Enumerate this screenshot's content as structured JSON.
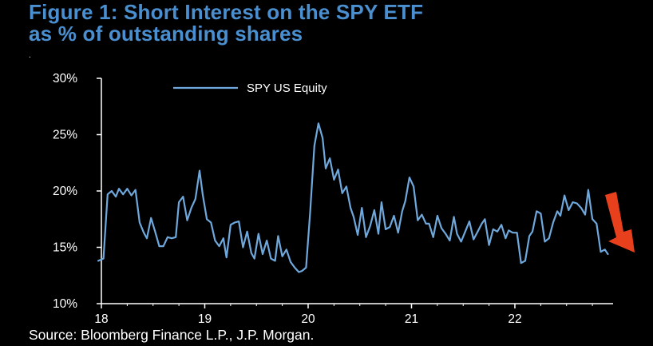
{
  "header": {
    "title_line1": "Figure 1: Short Interest on the SPY ETF",
    "title_line2": "as % of outstanding shares",
    "dot": "."
  },
  "footer": {
    "source": "Source: Bloomberg Finance L.P., J.P. Morgan."
  },
  "colors": {
    "title": "#4a8fd0",
    "series": "#6fa8dc",
    "arrow": "#e8401c",
    "axis": "#ffffff"
  },
  "chart_data": {
    "type": "line",
    "title": "Figure 1: Short Interest on the SPY ETF as % of outstanding shares",
    "xlabel": "",
    "ylabel": "",
    "xlim": [
      2018.0,
      2022.95
    ],
    "ylim": [
      10,
      30
    ],
    "y_ticks": [
      "10%",
      "15%",
      "20%",
      "25%",
      "30%"
    ],
    "y_tick_values": [
      10,
      15,
      20,
      25,
      30
    ],
    "x_ticks": [
      "18",
      "19",
      "20",
      "21",
      "22"
    ],
    "x_tick_values": [
      2018,
      2019,
      2020,
      2021,
      2022
    ],
    "legend": {
      "position": "top-left"
    },
    "series": [
      {
        "name": "SPY US Equity",
        "x": [
          2017.97,
          2018.02,
          2018.06,
          2018.1,
          2018.14,
          2018.17,
          2018.21,
          2018.25,
          2018.29,
          2018.33,
          2018.37,
          2018.41,
          2018.44,
          2018.48,
          2018.52,
          2018.56,
          2018.6,
          2018.64,
          2018.68,
          2018.72,
          2018.75,
          2018.79,
          2018.83,
          2018.87,
          2018.91,
          2018.95,
          2018.98,
          2019.02,
          2019.06,
          2019.1,
          2019.14,
          2019.18,
          2019.21,
          2019.25,
          2019.29,
          2019.33,
          2019.37,
          2019.41,
          2019.45,
          2019.48,
          2019.52,
          2019.56,
          2019.6,
          2019.64,
          2019.68,
          2019.71,
          2019.75,
          2019.79,
          2019.83,
          2019.87,
          2019.91,
          2019.94,
          2019.98,
          2020.02,
          2020.06,
          2020.1,
          2020.14,
          2020.17,
          2020.21,
          2020.25,
          2020.29,
          2020.33,
          2020.37,
          2020.41,
          2020.44,
          2020.48,
          2020.52,
          2020.56,
          2020.6,
          2020.64,
          2020.68,
          2020.71,
          2020.75,
          2020.79,
          2020.83,
          2020.87,
          2020.91,
          2020.94,
          2020.98,
          2021.02,
          2021.06,
          2021.1,
          2021.14,
          2021.17,
          2021.21,
          2021.25,
          2021.29,
          2021.33,
          2021.37,
          2021.41,
          2021.44,
          2021.48,
          2021.52,
          2021.56,
          2021.6,
          2021.64,
          2021.68,
          2021.71,
          2021.75,
          2021.79,
          2021.83,
          2021.87,
          2021.91,
          2021.94,
          2021.98,
          2022.02,
          2022.06,
          2022.1,
          2022.14,
          2022.17,
          2022.21,
          2022.25,
          2022.29,
          2022.33,
          2022.37,
          2022.41,
          2022.44,
          2022.48,
          2022.52,
          2022.56,
          2022.6,
          2022.64,
          2022.68,
          2022.71,
          2022.75,
          2022.79,
          2022.83,
          2022.87,
          2022.9
        ],
        "values": [
          13.8,
          14.0,
          19.7,
          20.0,
          19.5,
          20.2,
          19.7,
          20.2,
          19.6,
          20.1,
          17.2,
          16.3,
          15.8,
          17.6,
          16.4,
          15.1,
          15.1,
          15.9,
          15.8,
          15.9,
          19.0,
          19.5,
          17.4,
          18.5,
          19.3,
          21.8,
          19.7,
          17.5,
          17.2,
          15.6,
          15.1,
          15.8,
          14.1,
          17.0,
          17.2,
          17.3,
          15.0,
          16.4,
          14.5,
          14.0,
          16.2,
          14.4,
          15.6,
          14.0,
          13.8,
          16.0,
          14.2,
          14.8,
          13.7,
          13.2,
          12.8,
          12.9,
          13.2,
          18.2,
          24.0,
          26.0,
          24.7,
          22.0,
          22.9,
          21.0,
          21.9,
          19.8,
          20.4,
          18.5,
          17.7,
          16.1,
          18.5,
          15.9,
          16.9,
          18.3,
          16.2,
          19.0,
          16.6,
          16.8,
          17.8,
          16.3,
          18.2,
          19.1,
          21.2,
          20.4,
          17.4,
          17.9,
          17.1,
          17.1,
          15.9,
          17.8,
          16.7,
          16.2,
          15.6,
          17.7,
          16.2,
          15.5,
          16.4,
          17.3,
          15.7,
          16.4,
          17.1,
          17.5,
          15.2,
          16.6,
          16.4,
          17.0,
          15.8,
          16.5,
          16.3,
          16.3,
          13.6,
          13.8,
          16.0,
          16.4,
          18.2,
          18.0,
          15.5,
          15.8,
          17.2,
          18.2,
          17.8,
          19.6,
          18.3,
          19.0,
          18.9,
          18.5,
          17.9,
          20.1,
          17.5,
          17.1,
          14.6,
          14.8,
          14.4
        ]
      }
    ]
  }
}
